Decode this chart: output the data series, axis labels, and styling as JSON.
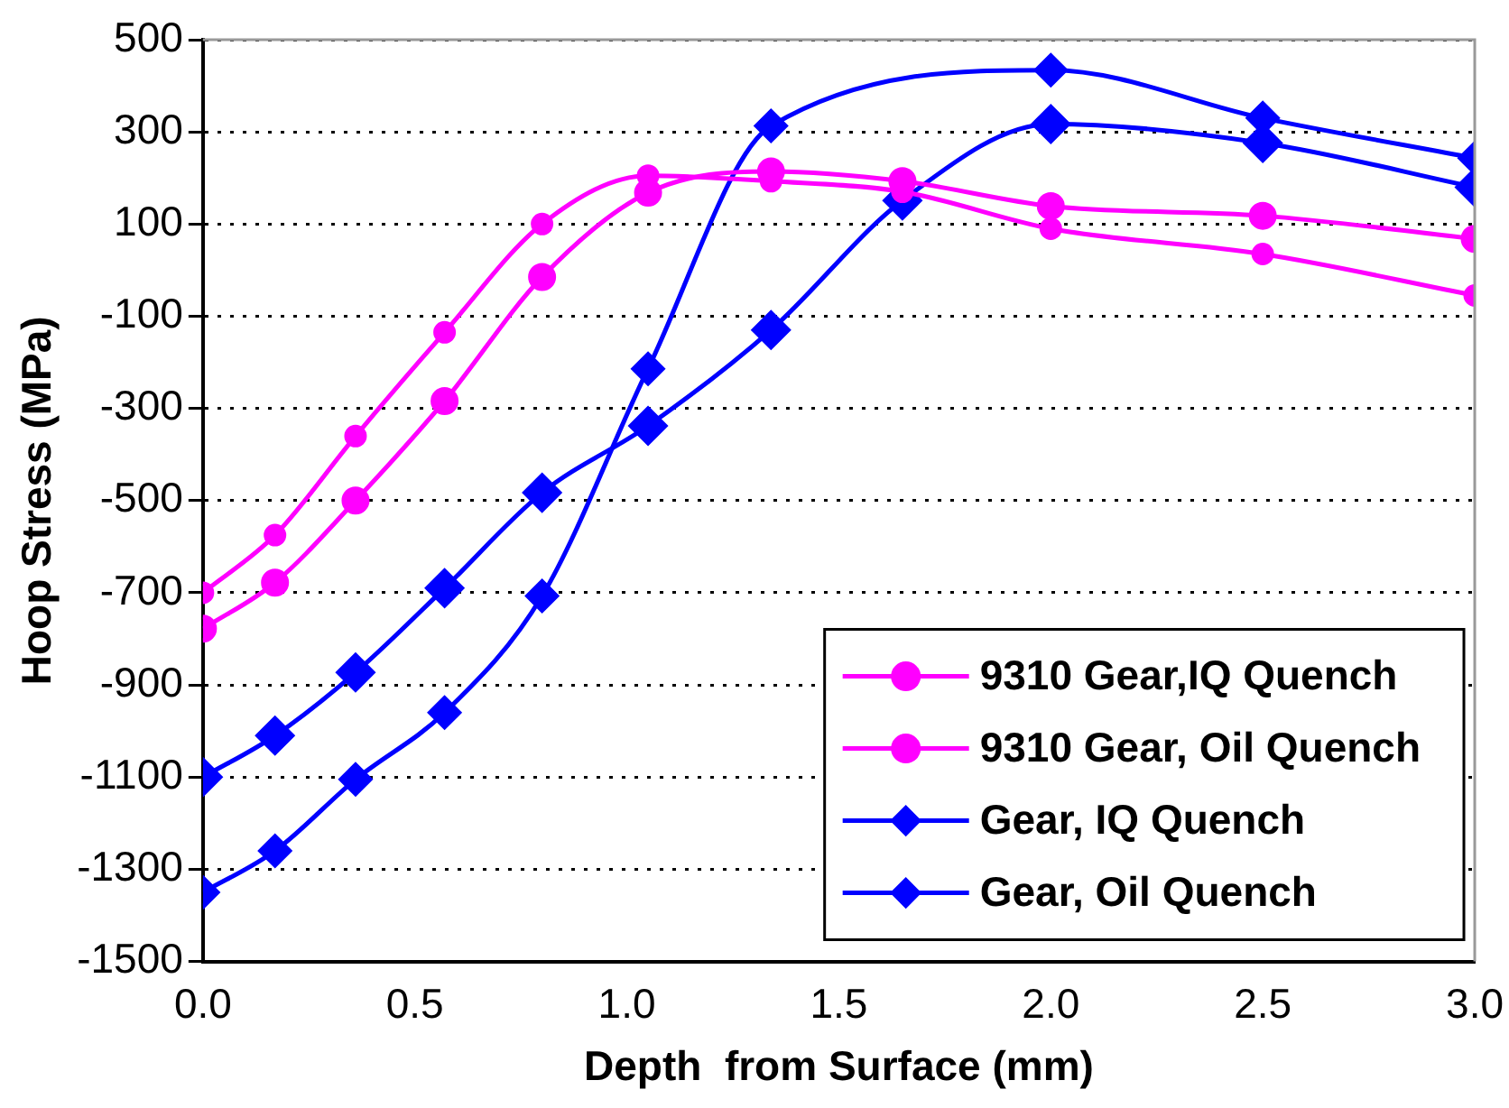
{
  "chart_data": {
    "type": "line",
    "xlabel": "Depth  from Surface (mm)",
    "ylabel": "Hoop Stress (MPa)",
    "xlim": [
      0,
      3
    ],
    "xticks": [
      {
        "value": 0,
        "label": "0.0"
      },
      {
        "value": 0.5,
        "label": "0.5"
      },
      {
        "value": 1,
        "label": "1.0"
      },
      {
        "value": 1.5,
        "label": "1.5"
      },
      {
        "value": 2,
        "label": "2.0"
      },
      {
        "value": 2.5,
        "label": "2.5"
      },
      {
        "value": 3,
        "label": "3.0"
      }
    ],
    "ylim": [
      -1500,
      500
    ],
    "yticks": [
      -1500,
      -1300,
      -1100,
      -900,
      -700,
      -500,
      -300,
      -100,
      100,
      300,
      500
    ],
    "grid": "y",
    "legend": "bottom right",
    "line_style": "solid",
    "x": [
      0,
      0.17,
      0.36,
      0.57,
      0.8,
      1.05,
      1.34,
      1.65,
      2.0,
      2.5,
      3.0
    ],
    "series": [
      {
        "name": "9310 Gear,IQ Quench",
        "color": "#ff00ff",
        "marker": "circle",
        "values": [
          -700,
          -575,
          -360,
          -135,
          100,
          205,
          193,
          170,
          90,
          35,
          -55
        ]
      },
      {
        "name": "9310 Gear, Oil Quench",
        "color": "#ff00ff",
        "marker": "circle",
        "values": [
          -778,
          -678,
          -500,
          -284,
          -15,
          168,
          214,
          193,
          139,
          118,
          68
        ]
      },
      {
        "name": "Gear, IQ Quench",
        "color": "#0000ff",
        "marker": "diamond",
        "values": [
          -1350,
          -1260,
          -1105,
          -960,
          -707,
          -214,
          313,
          null,
          434,
          330,
          243
        ]
      },
      {
        "name": "Gear, Oil Quench",
        "color": "#0000ff",
        "marker": "diamond",
        "values": [
          -1100,
          -1010,
          -873,
          -690,
          -483,
          -338,
          -130,
          151,
          317,
          276,
          180
        ]
      }
    ]
  }
}
